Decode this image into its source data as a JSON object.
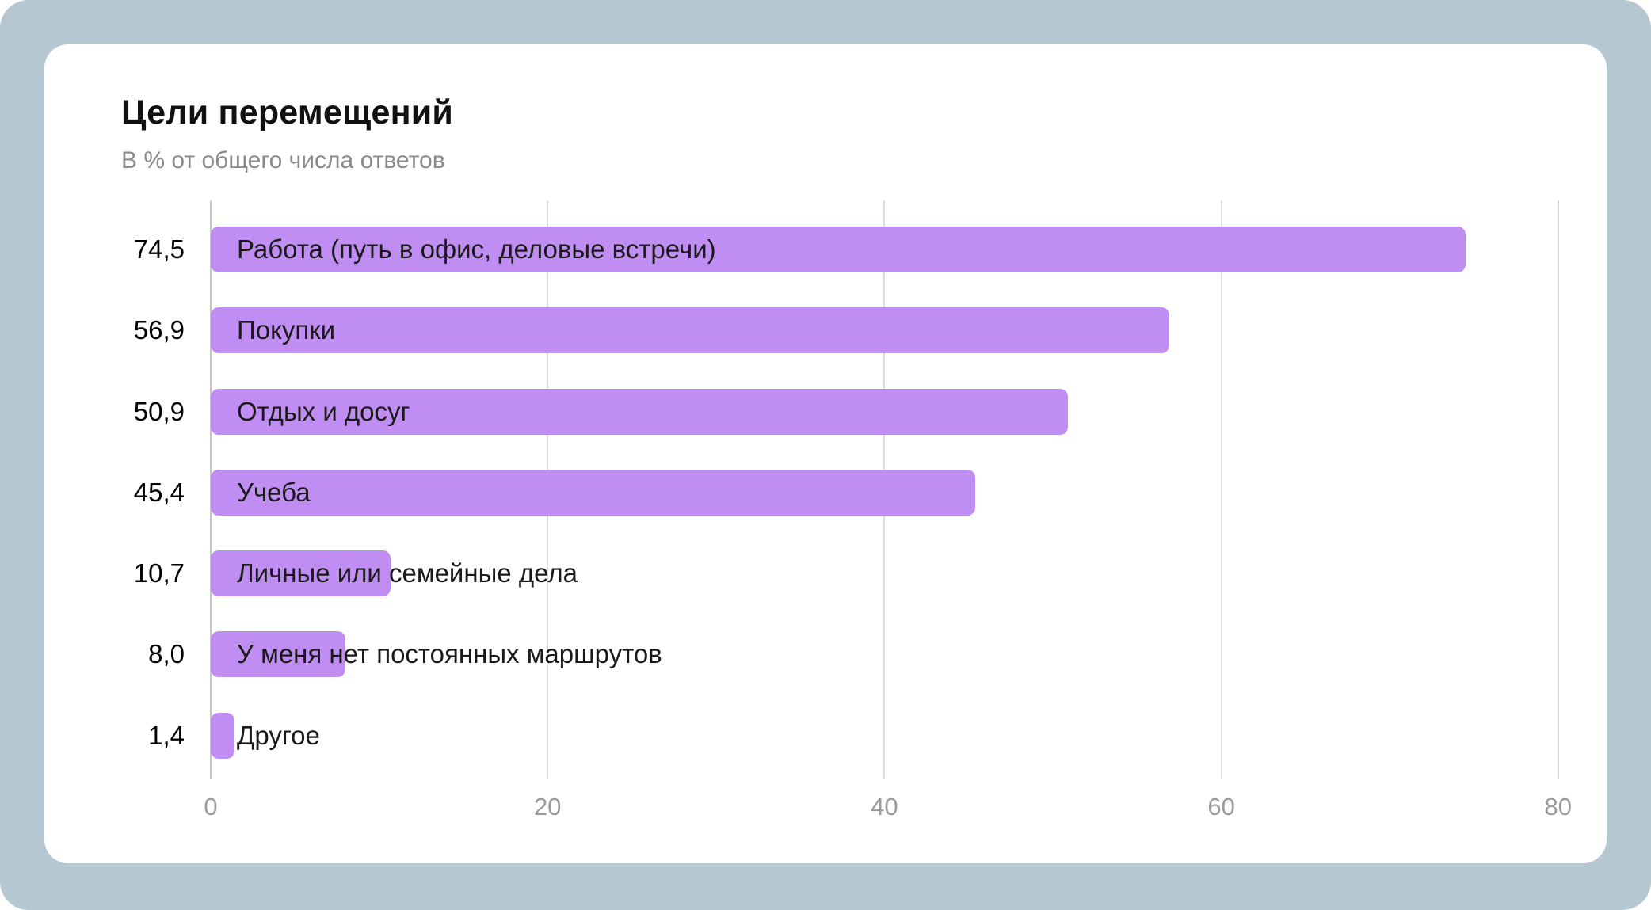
{
  "card": {
    "title": "Цели перемещений",
    "subtitle": "В % от общего числа ответов"
  },
  "chart_data": {
    "type": "bar",
    "orientation": "horizontal",
    "title": "Цели перемещений",
    "subtitle": "В % от общего числа ответов",
    "categories": [
      "Работа (путь в офис, деловые встречи)",
      "Покупки",
      "Отдых и досуг",
      "Учеба",
      "Личные или семейные дела",
      "У меня нет постоянных маршрутов",
      "Другое"
    ],
    "values": [
      74.5,
      56.9,
      50.9,
      45.4,
      10.7,
      8.0,
      1.4
    ],
    "value_labels": [
      "74,5",
      "56,9",
      "50,9",
      "45,4",
      "10,7",
      "8,0",
      "1,4"
    ],
    "x_ticks": [
      0,
      20,
      40,
      60,
      80
    ],
    "x_tick_labels": [
      "0",
      "20",
      "40",
      "60",
      "80"
    ],
    "xlim": [
      0,
      80
    ],
    "grid": true,
    "legend": false,
    "bar_color": "#c08df2",
    "colors": {
      "frame": "#b5c8d1",
      "card_background": "#ffffff",
      "bar": "#c08df2",
      "gridline": "#dcdcdc",
      "axis_line": "#c4c4c4",
      "tick_text": "#9b9b9b",
      "title_text": "#111111",
      "subtitle_text": "#8a8a8a",
      "label_text": "#1a1a1a"
    }
  }
}
